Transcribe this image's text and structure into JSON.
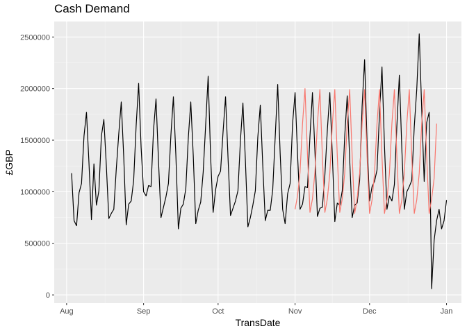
{
  "chart_data": {
    "type": "line",
    "title": "Cash Demand",
    "xlabel": "TransDate",
    "ylabel": "£GBP",
    "x_tick_labels": [
      "Aug",
      "Sep",
      "Oct",
      "Nov",
      "Dec",
      "Jan"
    ],
    "x_tick_dates": [
      "2019-08-01",
      "2019-09-01",
      "2019-10-01",
      "2019-11-01",
      "2019-12-01",
      "2020-01-01"
    ],
    "y_ticks": [
      0,
      500000,
      1000000,
      1500000,
      2000000,
      2500000
    ],
    "y_tick_labels": [
      "0",
      "500000",
      "1000000",
      "1500000",
      "2000000",
      "2500000"
    ],
    "ylim": [
      -80000,
      2650000
    ],
    "xlim": [
      "2019-07-27",
      "2020-01-07"
    ],
    "grid": true,
    "series": [
      {
        "color": "#000000",
        "x_start": "2019-08-03",
        "values": [
          1180000,
          720000,
          670000,
          990000,
          1080000,
          1540000,
          1770000,
          1280000,
          730000,
          1270000,
          870000,
          1010000,
          1540000,
          1700000,
          1250000,
          740000,
          790000,
          830000,
          1220000,
          1560000,
          1870000,
          1340000,
          680000,
          880000,
          910000,
          1110000,
          1640000,
          2050000,
          1430000,
          1000000,
          960000,
          1060000,
          1050000,
          1600000,
          1900000,
          1300000,
          750000,
          850000,
          950000,
          1080000,
          1550000,
          1920000,
          1350000,
          640000,
          840000,
          880000,
          1030000,
          1520000,
          1870000,
          1350000,
          690000,
          820000,
          900000,
          1190000,
          1650000,
          2120000,
          1330000,
          800000,
          1020000,
          1150000,
          1200000,
          1580000,
          1920000,
          1330000,
          770000,
          840000,
          910000,
          1010000,
          1500000,
          1860000,
          1300000,
          660000,
          750000,
          870000,
          1010000,
          1530000,
          1840000,
          1250000,
          720000,
          820000,
          820000,
          1020000,
          1530000,
          2040000,
          1370000,
          830000,
          690000,
          980000,
          1080000,
          1660000,
          1960000,
          1360000,
          830000,
          880000,
          1050000,
          1040000,
          1540000,
          1960000,
          1390000,
          760000,
          840000,
          850000,
          1160000,
          1600000,
          1960000,
          1360000,
          710000,
          890000,
          870000,
          1010000,
          1540000,
          1930000,
          1310000,
          750000,
          870000,
          890000,
          1110000,
          1830000,
          2280000,
          1470000,
          910000,
          1050000,
          1100000,
          1210000,
          1760000,
          2210000,
          1450000,
          830000,
          960000,
          910000,
          1070000,
          1640000,
          2130000,
          1410000,
          830000,
          1000000,
          1050000,
          1110000,
          1630000,
          1990000,
          2530000,
          1800000,
          1100000,
          1670000,
          1770000,
          60000,
          530000,
          720000,
          830000,
          640000,
          720000,
          920000
        ]
      },
      {
        "color": "#f8766d",
        "x_start": "2019-11-01",
        "values": [
          830000,
          960000,
          1190000,
          1660000,
          2000000,
          1360000,
          800000,
          930000,
          1190000,
          1660000,
          1990000,
          1340000,
          800000,
          930000,
          1180000,
          1650000,
          1990000,
          1350000,
          800000,
          930000,
          1180000,
          1660000,
          1990000,
          1340000,
          790000,
          930000,
          1180000,
          1660000,
          1990000,
          1340000,
          790000,
          920000,
          1180000,
          1660000,
          1990000,
          1340000,
          790000,
          920000,
          1180000,
          1660000,
          1990000,
          1340000,
          790000,
          920000,
          1180000,
          1660000,
          1990000,
          1340000,
          790000,
          920000,
          1180000,
          1660000,
          1990000,
          1340000,
          790000,
          930000,
          1130000,
          1660000
        ]
      }
    ]
  }
}
